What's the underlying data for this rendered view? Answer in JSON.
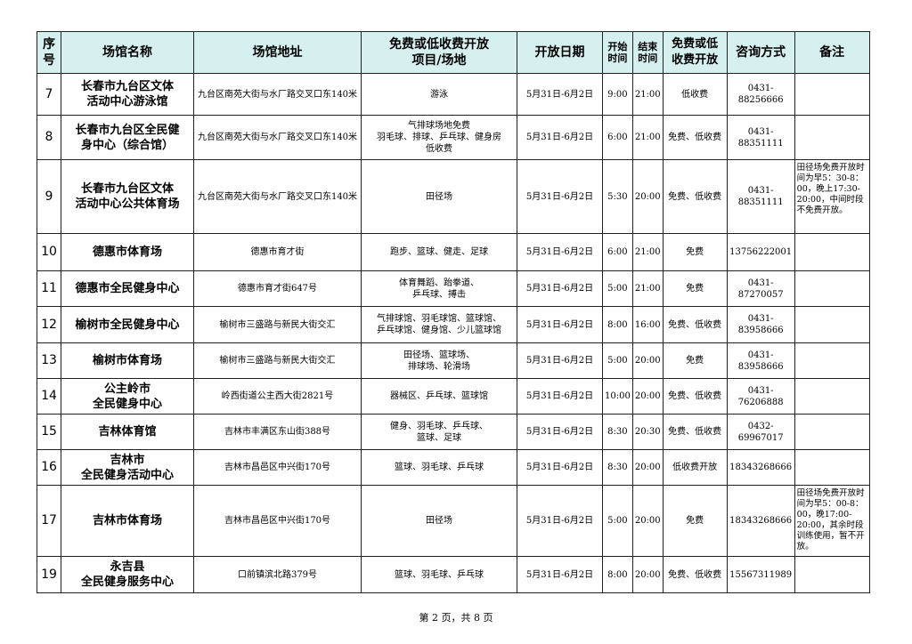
{
  "table": {
    "header": [
      "序\n号",
      "场馆名称",
      "场馆地址",
      "免费或低收费开放\n项目/场地",
      "开放日期",
      "开始\n时间",
      "结束\n时间",
      "免费或低\n收费开放",
      "咨询方式",
      "备注"
    ],
    "rows": [
      [
        "7",
        "长春市九台区文体\n活动中心游泳馆",
        "九台区南苑大街与水厂路交叉口东140米",
        "游泳",
        "5月31日-6月2日",
        "9:00",
        "21:00",
        "低收费",
        "0431-88256666",
        null
      ],
      [
        "8",
        "长春市九台区全民健\n身中心（综合馆）",
        "九台区南苑大街与水厂路交叉口东140米",
        "气排球场地免费\n羽毛球、排球、乒乓球、健身房\n低收费",
        "5月31日-6月2日",
        "6:00",
        "21:00",
        "免费、低收费",
        "0431-88351111",
        null
      ],
      [
        "9",
        "长春市九台区文体\n活动中心公共体育场",
        "九台区南苑大街与水厂路交叉口东140米",
        "田径场",
        "5月31日-6月2日",
        "5:30",
        "20:00",
        "免费、低收费",
        "0431-88351111",
        "田径场免费开放时间为早5：30-8：00，晚上17:30-20:00，中间时段不免费开放。"
      ],
      [
        "10",
        "德惠市体育场",
        "德惠市育才街",
        "跑步、篮球、健走、足球",
        "5月31日-6月2日",
        "6:00",
        "21:00",
        "免费",
        "13756222001",
        null
      ],
      [
        "11",
        "德惠市全民健身中心",
        "德惠市育才街647号",
        "体育舞蹈、跆拳道、\n乒乓球、搏击",
        "5月31日-6月2日",
        "5:00",
        "21:00",
        "免费",
        "0431-87270057",
        null
      ],
      [
        "12",
        "榆树市全民健身中心",
        "榆树市三盛路与新民大街交汇",
        "气排球馆、羽毛球馆、篮球馆、\n乒乓球馆、健身馆、少儿篮球馆",
        "5月31日-6月2日",
        "8:00",
        "16:00",
        "免费、低收费",
        "0431-83958666",
        null
      ],
      [
        "13",
        "榆树市体育场",
        "榆树市三盛路与新民大街交汇",
        "田径场、篮球场、\n排球场、轮滑场",
        "5月31日-6月2日",
        "5:00",
        "20:00",
        "免费",
        "0431-83958666",
        null
      ],
      [
        "14",
        "公主岭市\n全民健身中心",
        "岭西街道公主西大街2821号",
        "器械区、乒乓球、篮球馆",
        "5月31日-6月2日",
        "10:00",
        "20:00",
        "免费、低收费",
        "0431-76206888",
        null
      ],
      [
        "15",
        "吉林体育馆",
        "吉林市丰满区东山街388号",
        "健身、羽毛球、乒乓球、\n篮球、足球",
        "5月31日-6月2日",
        "8:30",
        "20:30",
        "免费、低收费",
        "0432-69967017",
        null
      ],
      [
        "16",
        "吉林市\n全民健身活动中心",
        "吉林市昌邑区中兴街170号",
        "篮球、羽毛球、乒乓球",
        "5月31日-6月2日",
        "8:30",
        "20:00",
        "低收费开放",
        "18343268666",
        null
      ],
      [
        "17",
        "吉林市体育场",
        "吉林市昌邑区中兴街170号",
        "田径场",
        "5月31日-6月2日",
        "5:00",
        "20:00",
        "免费",
        "18343268666",
        "田径场免费开放时间为早5：00-8：00，晚17:00-20:00，其余时段训练使用，暂不开放。"
      ],
      [
        "19",
        "永吉县\n全民健身服务中心",
        "口前镇滨北路379号",
        "篮球、羽毛球、乒乓球",
        "5月31日-6月2日",
        "8:00",
        "20:00",
        "免费、低收费",
        "15567311989",
        null
      ]
    ]
  },
  "footer": "第 2 页，共 8 页"
}
